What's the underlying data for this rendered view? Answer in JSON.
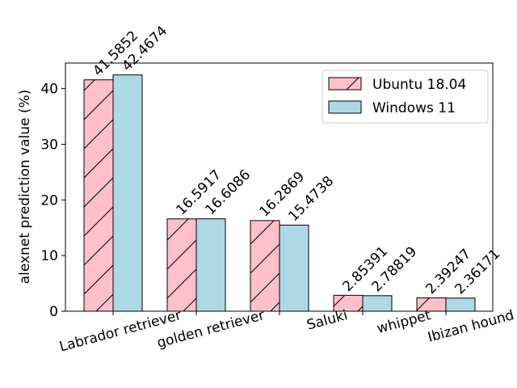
{
  "chart_data": {
    "type": "bar",
    "title": "",
    "xlabel": "",
    "ylabel": "alexnet prediction value (%)",
    "categories": [
      "Labrador retriever",
      "golden retriever",
      "Saluki",
      "whippet",
      "Ibizan hound"
    ],
    "series": [
      {
        "name": "Ubuntu 18.04",
        "values": [
          41.5852,
          16.5917,
          16.2869,
          2.85391,
          2.39247
        ],
        "labels": [
          "41.5852",
          "16.5917",
          "16.2869",
          "2.85391",
          "2.39247"
        ],
        "color": "#ffc0cb",
        "hatch": "diagonal"
      },
      {
        "name": "Windows 11",
        "values": [
          42.4674,
          16.6086,
          15.4738,
          2.78819,
          2.36171
        ],
        "labels": [
          "42.4674",
          "16.6086",
          "15.4738",
          "2.78819",
          "2.36171"
        ],
        "color": "#add8e6",
        "hatch": "none"
      }
    ],
    "ylim": [
      0,
      44.6
    ],
    "yticks": [
      0,
      10,
      20,
      30,
      40
    ],
    "grid": false,
    "legend_position": "top-right"
  }
}
